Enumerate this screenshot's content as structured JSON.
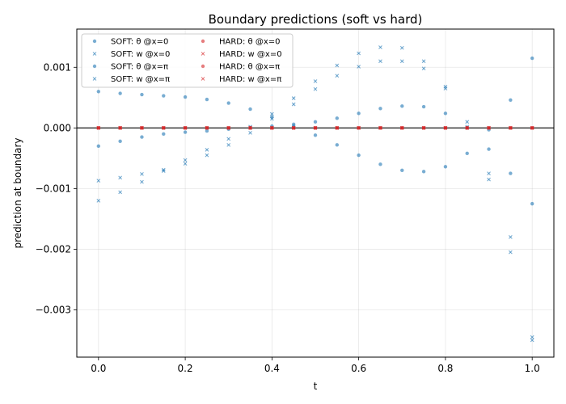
{
  "chart_data": {
    "type": "scatter",
    "title": "Boundary predictions (soft vs hard)",
    "xlabel": "t",
    "ylabel": "prediction at boundary",
    "xlim": [
      -0.05,
      1.05
    ],
    "ylim": [
      -0.00378,
      0.00163
    ],
    "xticks": [
      0.0,
      0.2,
      0.4,
      0.6,
      0.8,
      1.0
    ],
    "xtick_labels": [
      "0.0",
      "0.2",
      "0.4",
      "0.6",
      "0.8",
      "1.0"
    ],
    "yticks": [
      -0.003,
      -0.002,
      -0.001,
      0.0,
      0.001
    ],
    "ytick_labels": [
      "−0.003",
      "−0.002",
      "−0.001",
      "0.000",
      "0.001"
    ],
    "grid": true,
    "zero_line": true,
    "legend": {
      "placement": "upper left",
      "columns": 2
    },
    "series": [
      {
        "name": "SOFT: θ @x=0",
        "marker": "circle",
        "color": "#1f77b4",
        "x": [
          0.0,
          0.05,
          0.1,
          0.15,
          0.2,
          0.25,
          0.3,
          0.35,
          0.4,
          0.45,
          0.5,
          0.55,
          0.6,
          0.65,
          0.7,
          0.75,
          0.8,
          0.85,
          0.9,
          0.95,
          1.0
        ],
        "y": [
          0.0006,
          0.00057,
          0.00055,
          0.00053,
          0.00051,
          0.00047,
          0.00041,
          0.00031,
          0.00018,
          3e-05,
          -0.00012,
          -0.00028,
          -0.00045,
          -0.0006,
          -0.0007,
          -0.00072,
          -0.00064,
          -0.00042,
          -3e-05,
          0.00046,
          0.00115
        ]
      },
      {
        "name": "SOFT: w @x=0",
        "marker": "x",
        "color": "#1f77b4",
        "x": [
          0.0,
          0.05,
          0.1,
          0.15,
          0.2,
          0.25,
          0.3,
          0.35,
          0.4,
          0.45,
          0.5,
          0.55,
          0.6,
          0.65,
          0.7,
          0.75,
          0.8,
          0.85,
          0.9,
          0.95,
          1.0
        ],
        "y": [
          -0.0012,
          -0.00106,
          -0.00089,
          -0.00071,
          -0.00053,
          -0.00036,
          -0.00018,
          2e-05,
          0.00023,
          0.00049,
          0.00077,
          0.00103,
          0.00123,
          0.00133,
          0.00132,
          0.0011,
          0.00068,
          2e-05,
          -0.00085,
          -0.00205,
          -0.0035
        ]
      },
      {
        "name": "SOFT: θ @x=π",
        "marker": "circle",
        "color": "#1f77b4",
        "x": [
          0.0,
          0.05,
          0.1,
          0.15,
          0.2,
          0.25,
          0.3,
          0.35,
          0.4,
          0.45,
          0.5,
          0.55,
          0.6,
          0.65,
          0.7,
          0.75,
          0.8,
          0.85,
          0.9,
          0.95,
          1.0
        ],
        "y": [
          -0.0003,
          -0.00022,
          -0.00015,
          -0.0001,
          -7e-05,
          -5e-05,
          -2e-05,
          0.0,
          3e-05,
          6e-05,
          0.0001,
          0.00016,
          0.00024,
          0.00032,
          0.00036,
          0.00035,
          0.00024,
          0.0,
          -0.00035,
          -0.00075,
          -0.00125
        ]
      },
      {
        "name": "SOFT: w @x=π",
        "marker": "x",
        "color": "#1f77b4",
        "x": [
          0.0,
          0.05,
          0.1,
          0.15,
          0.2,
          0.25,
          0.3,
          0.35,
          0.4,
          0.45,
          0.5,
          0.55,
          0.6,
          0.65,
          0.7,
          0.75,
          0.8,
          0.85,
          0.9,
          0.95,
          1.0
        ],
        "y": [
          -0.00087,
          -0.00082,
          -0.00076,
          -0.00069,
          -0.00059,
          -0.00045,
          -0.00028,
          -8e-05,
          0.00015,
          0.00039,
          0.00064,
          0.00086,
          0.00101,
          0.0011,
          0.0011,
          0.00098,
          0.00065,
          0.0001,
          -0.00075,
          -0.0018,
          -0.00345
        ]
      },
      {
        "name": "HARD: θ @x=0",
        "marker": "circle",
        "color": "#d62728",
        "x": [
          0.0,
          0.05,
          0.1,
          0.15,
          0.2,
          0.25,
          0.3,
          0.35,
          0.4,
          0.45,
          0.5,
          0.55,
          0.6,
          0.65,
          0.7,
          0.75,
          0.8,
          0.85,
          0.9,
          0.95,
          1.0
        ],
        "y": [
          0,
          0,
          0,
          0,
          0,
          0,
          0,
          0,
          0,
          0,
          0,
          0,
          0,
          0,
          0,
          0,
          0,
          0,
          0,
          0,
          0
        ]
      },
      {
        "name": "HARD: w @x=0",
        "marker": "x",
        "color": "#d62728",
        "x": [
          0.0,
          0.05,
          0.1,
          0.15,
          0.2,
          0.25,
          0.3,
          0.35,
          0.4,
          0.45,
          0.5,
          0.55,
          0.6,
          0.65,
          0.7,
          0.75,
          0.8,
          0.85,
          0.9,
          0.95,
          1.0
        ],
        "y": [
          0,
          0,
          0,
          0,
          0,
          0,
          0,
          0,
          0,
          0,
          0,
          0,
          0,
          0,
          0,
          0,
          0,
          0,
          0,
          0,
          0
        ]
      },
      {
        "name": "HARD: θ @x=π",
        "marker": "circle",
        "color": "#d62728",
        "x": [
          0.0,
          0.05,
          0.1,
          0.15,
          0.2,
          0.25,
          0.3,
          0.35,
          0.4,
          0.45,
          0.5,
          0.55,
          0.6,
          0.65,
          0.7,
          0.75,
          0.8,
          0.85,
          0.9,
          0.95,
          1.0
        ],
        "y": [
          0,
          0,
          0,
          0,
          0,
          0,
          0,
          0,
          0,
          0,
          0,
          0,
          0,
          0,
          0,
          0,
          0,
          0,
          0,
          0,
          0
        ]
      },
      {
        "name": "HARD: w @x=π",
        "marker": "x",
        "color": "#d62728",
        "x": [
          0.0,
          0.05,
          0.1,
          0.15,
          0.2,
          0.25,
          0.3,
          0.35,
          0.4,
          0.45,
          0.5,
          0.55,
          0.6,
          0.65,
          0.7,
          0.75,
          0.8,
          0.85,
          0.9,
          0.95,
          1.0
        ],
        "y": [
          0,
          0,
          0,
          0,
          0,
          0,
          0,
          0,
          0,
          0,
          0,
          0,
          0,
          0,
          0,
          0,
          0,
          0,
          0,
          0,
          0
        ]
      }
    ]
  }
}
